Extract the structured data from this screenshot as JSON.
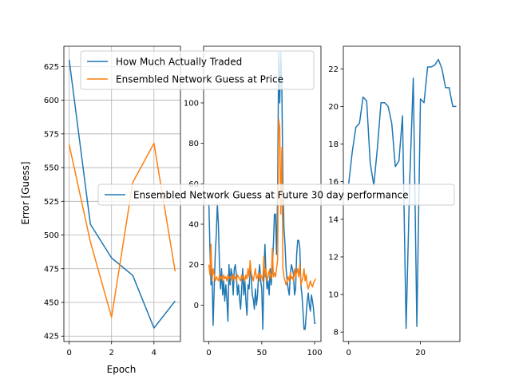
{
  "chart_data": [
    {
      "type": "line",
      "xlabel": "Epoch",
      "ylabel": "Error [Guess]",
      "xlim": [
        -0.25,
        5.25
      ],
      "ylim": [
        421,
        640
      ],
      "xticks": [
        0,
        2,
        4
      ],
      "yticks": [
        425,
        450,
        475,
        500,
        525,
        550,
        575,
        600,
        625
      ],
      "grid": true,
      "legend_position": "top-right",
      "series": [
        {
          "name": "How Much Actually Traded",
          "color": "#1f77b4",
          "x": [
            0,
            1,
            2,
            3,
            4,
            5
          ],
          "y": [
            630,
            508,
            483,
            470,
            431,
            451
          ]
        },
        {
          "name": "Ensembled Network Guess at Price",
          "color": "#ff7f0e",
          "x": [
            0,
            1,
            2,
            3,
            4,
            5
          ],
          "y": [
            567,
            495,
            439,
            539,
            568,
            473
          ]
        }
      ]
    },
    {
      "type": "line",
      "xlim": [
        -5,
        106
      ],
      "ylim": [
        -18,
        128
      ],
      "xticks": [
        0,
        50,
        100
      ],
      "yticks": [
        0,
        20,
        40,
        60,
        80,
        100
      ],
      "grid": false,
      "series": [
        {
          "color": "#1f77b4",
          "x": [
            0,
            1,
            2,
            3,
            4,
            5,
            6,
            7,
            8,
            9,
            10,
            11,
            12,
            13,
            14,
            15,
            16,
            17,
            18,
            19,
            20,
            21,
            22,
            23,
            24,
            25,
            26,
            27,
            28,
            29,
            30,
            31,
            32,
            33,
            34,
            35,
            36,
            37,
            38,
            39,
            40,
            41,
            42,
            43,
            44,
            45,
            46,
            47,
            48,
            49,
            50,
            51,
            52,
            53,
            54,
            55,
            56,
            57,
            58,
            59,
            60,
            61,
            62,
            63,
            64,
            65,
            66,
            67,
            68,
            69,
            70,
            71,
            72,
            73,
            74,
            75,
            76,
            77,
            78,
            79,
            80,
            81,
            82,
            83,
            84,
            85,
            86,
            87,
            88,
            89,
            90,
            91,
            92,
            93,
            94,
            95,
            96,
            97,
            98,
            99,
            100,
            101
          ],
          "y": [
            50,
            28,
            10,
            15,
            -10,
            8,
            25,
            35,
            50,
            40,
            20,
            8,
            18,
            5,
            12,
            2,
            10,
            3,
            -8,
            20,
            10,
            18,
            15,
            5,
            18,
            20,
            15,
            5,
            10,
            3,
            -2,
            8,
            18,
            5,
            12,
            2,
            -5,
            10,
            8,
            18,
            15,
            5,
            3,
            -2,
            8,
            0,
            5,
            15,
            20,
            12,
            8,
            -12,
            15,
            30,
            15,
            8,
            12,
            5,
            18,
            10,
            20,
            30,
            45,
            45,
            25,
            55,
            125,
            100,
            125,
            108,
            60,
            38,
            30,
            18,
            12,
            8,
            5,
            15,
            20,
            18,
            15,
            5,
            8,
            25,
            32,
            32,
            28,
            10,
            5,
            -3,
            -12,
            -12,
            -5,
            2,
            6,
            0,
            -3,
            5,
            2,
            -2,
            -9,
            -9
          ]
        },
        {
          "color": "#ff7f0e",
          "x": [
            0,
            1,
            2,
            3,
            4,
            5,
            6,
            7,
            8,
            9,
            10,
            11,
            12,
            13,
            14,
            15,
            16,
            17,
            18,
            19,
            20,
            21,
            22,
            23,
            24,
            25,
            26,
            27,
            28,
            29,
            30,
            31,
            32,
            33,
            34,
            35,
            36,
            37,
            38,
            39,
            40,
            41,
            42,
            43,
            44,
            45,
            46,
            47,
            48,
            49,
            50,
            51,
            52,
            53,
            54,
            55,
            56,
            57,
            58,
            59,
            60,
            61,
            62,
            63,
            64,
            65,
            66,
            67,
            68,
            69,
            70,
            71,
            72,
            73,
            74,
            75,
            76,
            77,
            78,
            79,
            80,
            81,
            82,
            83,
            84,
            85,
            86,
            87,
            88,
            89,
            90,
            91,
            92,
            93,
            94,
            95,
            96,
            97,
            98,
            99,
            100,
            101
          ],
          "y": [
            20,
            15,
            30,
            12,
            18,
            15,
            12,
            14,
            13,
            12,
            15,
            13,
            14,
            12,
            15,
            13,
            14,
            12,
            15,
            13,
            14,
            14,
            12,
            15,
            13,
            14,
            12,
            15,
            14,
            13,
            12,
            15,
            13,
            14,
            12,
            15,
            13,
            18,
            14,
            22,
            16,
            14,
            12,
            15,
            18,
            13,
            14,
            16,
            12,
            15,
            14,
            12,
            24,
            14,
            18,
            12,
            14,
            17,
            15,
            13,
            28,
            14,
            16,
            14,
            18,
            22,
            92,
            88,
            45,
            78,
            18,
            14,
            12,
            10,
            12,
            14,
            12,
            16,
            13,
            14,
            12,
            18,
            14,
            16,
            18,
            14,
            20,
            10,
            12,
            14,
            18,
            12,
            15,
            10,
            8,
            10,
            12,
            10,
            9,
            11,
            12,
            13
          ]
        }
      ]
    },
    {
      "type": "line",
      "xlim": [
        -1.5,
        31
      ],
      "ylim": [
        7.5,
        23.2
      ],
      "xticks": [
        0,
        20
      ],
      "yticks": [
        8,
        10,
        12,
        14,
        16,
        18,
        20,
        22
      ],
      "grid": false,
      "legend_position": "center",
      "series": [
        {
          "name": "Ensembled Network Guess at Future 30 day performance",
          "color": "#1f77b4",
          "x": [
            0,
            1,
            2,
            3,
            4,
            5,
            6,
            7,
            8,
            9,
            10,
            11,
            12,
            13,
            14,
            15,
            16,
            17,
            18,
            19,
            20,
            21,
            22,
            23,
            24,
            25,
            26,
            27,
            28,
            29,
            30
          ],
          "y": [
            15.9,
            17.6,
            18.9,
            19.1,
            20.5,
            20.3,
            17,
            15.8,
            17.8,
            20.2,
            20.2,
            20,
            19.1,
            16.8,
            17.1,
            19.5,
            8.2,
            16,
            21.5,
            8.3,
            20.4,
            20.2,
            22.1,
            22.1,
            22.2,
            22.5,
            22,
            21,
            21,
            20,
            20
          ]
        }
      ]
    }
  ]
}
